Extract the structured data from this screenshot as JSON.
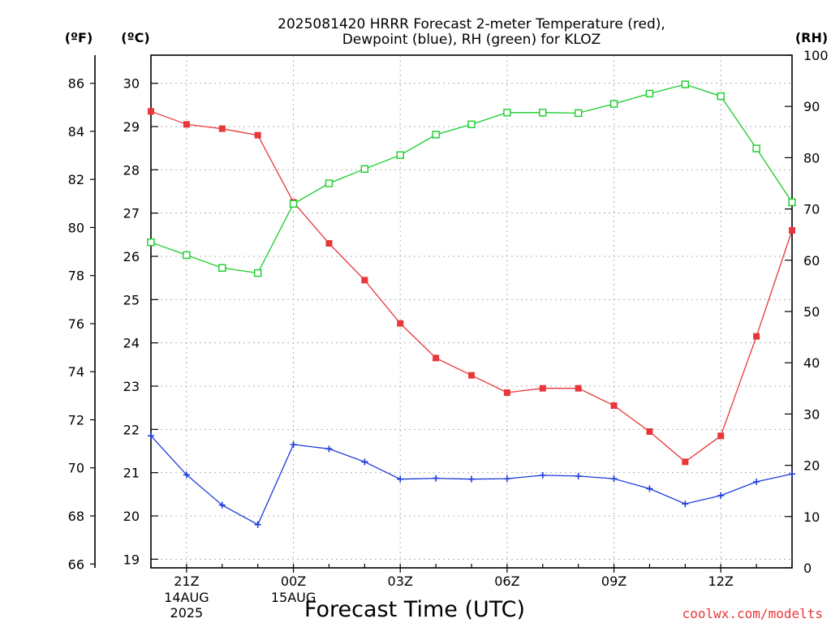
{
  "chart_data": {
    "type": "line",
    "title": {
      "line1": "2025081420 HRRR Forecast 2-meter Temperature (red),",
      "line2": "Dewpoint (blue), RH (green) for KLOZ"
    },
    "xlabel": "Forecast Time (UTC)",
    "credit": "coolwx.com/modelts",
    "units": {
      "fahrenheit": "(ºF)",
      "celsius": "(ºC)",
      "rh": "(RH)"
    },
    "x_hours": [
      0,
      1,
      2,
      3,
      4,
      5,
      6,
      7,
      8,
      9,
      10,
      11,
      12,
      13,
      14,
      15,
      16,
      17,
      18
    ],
    "x_ticks": [
      {
        "hour": 1,
        "label": "21Z",
        "sub1": "14AUG",
        "sub2": "2025"
      },
      {
        "hour": 4,
        "label": "00Z",
        "sub1": "15AUG",
        "sub2": ""
      },
      {
        "hour": 7,
        "label": "03Z",
        "sub1": "",
        "sub2": ""
      },
      {
        "hour": 10,
        "label": "06Z",
        "sub1": "",
        "sub2": ""
      },
      {
        "hour": 13,
        "label": "09Z",
        "sub1": "",
        "sub2": ""
      },
      {
        "hour": 16,
        "label": "12Z",
        "sub1": "",
        "sub2": ""
      }
    ],
    "temp_c_ylim": [
      18.8,
      30.65
    ],
    "temp_c_ticks": [
      "19",
      "20",
      "21",
      "22",
      "23",
      "24",
      "25",
      "26",
      "27",
      "28",
      "29",
      "30"
    ],
    "temp_f_ticks": [
      "66",
      "68",
      "70",
      "72",
      "74",
      "76",
      "78",
      "80",
      "82",
      "84",
      "86"
    ],
    "rh_ylim": [
      0,
      100
    ],
    "rh_ticks": [
      "0",
      "10",
      "20",
      "30",
      "40",
      "50",
      "60",
      "70",
      "80",
      "90",
      "100"
    ],
    "series": [
      {
        "name": "Temperature",
        "unit": "C",
        "color": "#e8363a",
        "marker": "filled-square",
        "values": [
          29.35,
          29.05,
          28.95,
          28.8,
          27.25,
          26.3,
          25.45,
          24.45,
          23.65,
          23.25,
          22.85,
          22.95,
          22.95,
          22.55,
          21.95,
          21.25,
          21.85,
          24.15,
          26.6
        ]
      },
      {
        "name": "Dewpoint",
        "unit": "C",
        "color": "#1c3adb",
        "marker": "plus",
        "values": [
          21.85,
          20.95,
          20.25,
          19.8,
          21.65,
          21.55,
          21.25,
          20.85,
          20.87,
          20.85,
          20.86,
          20.94,
          20.92,
          20.86,
          20.63,
          20.28,
          20.47,
          20.79,
          20.97
        ]
      },
      {
        "name": "RH",
        "unit": "%",
        "color": "#18cc2a",
        "marker": "open-square",
        "values": [
          63.5,
          61,
          58.5,
          57.5,
          71,
          75,
          77.8,
          80.5,
          84.5,
          86.5,
          88.8,
          88.8,
          88.7,
          90.5,
          92.5,
          94.3,
          92,
          81.8,
          71.3
        ]
      }
    ]
  }
}
